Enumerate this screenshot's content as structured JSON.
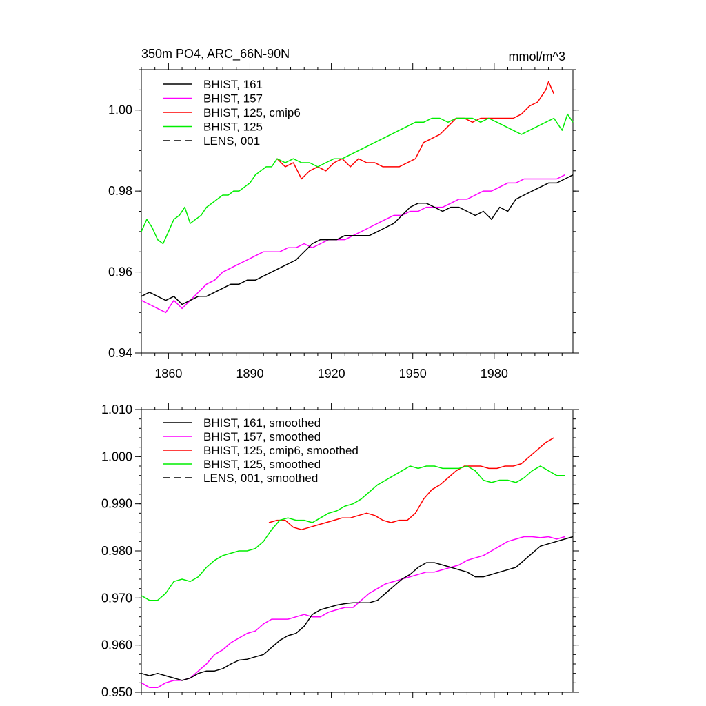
{
  "chart_data": [
    {
      "type": "line",
      "title_left": "350m PO4, ARC_66N-90N",
      "title_right": "mmol/m^3",
      "xlim": [
        1850,
        2009
      ],
      "ylim": [
        0.94,
        1.01
      ],
      "yticks": [
        "0.94",
        "0.96",
        "0.98",
        "1.00"
      ],
      "xticks": [
        "1860",
        "1890",
        "1920",
        "1950",
        "1980"
      ],
      "legend": [
        {
          "label": "BHIST, 161",
          "color": "#000000",
          "dash": false
        },
        {
          "label": "BHIST, 157",
          "color": "#ff00ff",
          "dash": false
        },
        {
          "label": "BHIST, 125, cmip6",
          "color": "#ff0000",
          "dash": false
        },
        {
          "label": "BHIST, 125",
          "color": "#00ee00",
          "dash": false
        },
        {
          "label": "LENS, 001",
          "color": "#000000",
          "dash": true
        }
      ],
      "series": [
        {
          "name": "BHIST, 125, cmip6",
          "color": "#ff0000",
          "x": [
            1900,
            1903,
            1906,
            1909,
            1912,
            1915,
            1918,
            1921,
            1924,
            1927,
            1930,
            1933,
            1936,
            1939,
            1942,
            1945,
            1948,
            1951,
            1954,
            1957,
            1960,
            1963,
            1966,
            1969,
            1972,
            1975,
            1978,
            1981,
            1984,
            1987,
            1990,
            1993,
            1996,
            1999,
            2000,
            2002
          ],
          "values": [
            0.988,
            0.986,
            0.987,
            0.983,
            0.985,
            0.986,
            0.985,
            0.987,
            0.988,
            0.986,
            0.988,
            0.987,
            0.987,
            0.986,
            0.986,
            0.986,
            0.987,
            0.988,
            0.992,
            0.993,
            0.994,
            0.996,
            0.998,
            0.998,
            0.997,
            0.998,
            0.998,
            0.998,
            0.998,
            0.998,
            0.999,
            1.001,
            1.002,
            1.005,
            1.007,
            1.004
          ]
        },
        {
          "name": "BHIST, 125",
          "color": "#00ee00",
          "x": [
            1850,
            1852,
            1854,
            1856,
            1858,
            1860,
            1862,
            1864,
            1866,
            1868,
            1870,
            1872,
            1874,
            1876,
            1878,
            1880,
            1882,
            1884,
            1886,
            1888,
            1890,
            1892,
            1894,
            1896,
            1898,
            1900,
            1903,
            1906,
            1909,
            1912,
            1915,
            1918,
            1921,
            1924,
            1927,
            1930,
            1933,
            1936,
            1939,
            1942,
            1945,
            1948,
            1951,
            1954,
            1957,
            1960,
            1963,
            1966,
            1969,
            1972,
            1975,
            1978,
            1981,
            1984,
            1987,
            1990,
            1993,
            1996,
            1999,
            2002,
            2005,
            2007,
            2009
          ],
          "values": [
            0.97,
            0.973,
            0.971,
            0.968,
            0.967,
            0.97,
            0.973,
            0.974,
            0.976,
            0.972,
            0.973,
            0.974,
            0.976,
            0.977,
            0.978,
            0.979,
            0.979,
            0.98,
            0.98,
            0.981,
            0.982,
            0.984,
            0.985,
            0.986,
            0.986,
            0.988,
            0.987,
            0.988,
            0.987,
            0.987,
            0.986,
            0.987,
            0.988,
            0.988,
            0.989,
            0.99,
            0.991,
            0.992,
            0.993,
            0.994,
            0.995,
            0.996,
            0.997,
            0.997,
            0.998,
            0.998,
            0.997,
            0.998,
            0.998,
            0.998,
            0.997,
            0.998,
            0.997,
            0.996,
            0.995,
            0.994,
            0.995,
            0.996,
            0.997,
            0.998,
            0.995,
            0.999,
            0.997
          ]
        },
        {
          "name": "BHIST, 157",
          "color": "#ff00ff",
          "x": [
            1850,
            1853,
            1856,
            1859,
            1862,
            1865,
            1868,
            1871,
            1874,
            1877,
            1880,
            1883,
            1886,
            1889,
            1892,
            1895,
            1898,
            1901,
            1904,
            1907,
            1910,
            1913,
            1916,
            1919,
            1922,
            1925,
            1928,
            1931,
            1934,
            1937,
            1940,
            1943,
            1946,
            1949,
            1952,
            1955,
            1958,
            1961,
            1964,
            1967,
            1970,
            1973,
            1976,
            1979,
            1982,
            1985,
            1988,
            1991,
            1994,
            1997,
            2000,
            2003,
            2006
          ],
          "values": [
            0.953,
            0.952,
            0.951,
            0.95,
            0.953,
            0.951,
            0.953,
            0.955,
            0.957,
            0.958,
            0.96,
            0.961,
            0.962,
            0.963,
            0.964,
            0.965,
            0.965,
            0.965,
            0.966,
            0.966,
            0.967,
            0.966,
            0.967,
            0.968,
            0.968,
            0.968,
            0.969,
            0.97,
            0.971,
            0.972,
            0.973,
            0.974,
            0.974,
            0.975,
            0.975,
            0.976,
            0.976,
            0.976,
            0.977,
            0.978,
            0.978,
            0.979,
            0.98,
            0.98,
            0.981,
            0.982,
            0.982,
            0.983,
            0.983,
            0.983,
            0.983,
            0.983,
            0.984
          ]
        },
        {
          "name": "BHIST, 161",
          "color": "#000000",
          "x": [
            1850,
            1853,
            1856,
            1859,
            1862,
            1865,
            1868,
            1871,
            1874,
            1877,
            1880,
            1883,
            1886,
            1889,
            1892,
            1895,
            1898,
            1901,
            1904,
            1907,
            1910,
            1913,
            1916,
            1919,
            1922,
            1925,
            1928,
            1931,
            1934,
            1937,
            1940,
            1943,
            1946,
            1949,
            1952,
            1955,
            1958,
            1961,
            1964,
            1967,
            1970,
            1973,
            1976,
            1979,
            1982,
            1985,
            1988,
            1991,
            1994,
            1997,
            2000,
            2003,
            2006,
            2009
          ],
          "values": [
            0.954,
            0.955,
            0.954,
            0.953,
            0.954,
            0.952,
            0.953,
            0.954,
            0.954,
            0.955,
            0.956,
            0.957,
            0.957,
            0.958,
            0.958,
            0.959,
            0.96,
            0.961,
            0.962,
            0.963,
            0.965,
            0.967,
            0.968,
            0.968,
            0.968,
            0.969,
            0.969,
            0.969,
            0.969,
            0.97,
            0.971,
            0.972,
            0.974,
            0.976,
            0.977,
            0.977,
            0.976,
            0.975,
            0.976,
            0.976,
            0.975,
            0.974,
            0.975,
            0.973,
            0.976,
            0.975,
            0.978,
            0.979,
            0.98,
            0.981,
            0.982,
            0.982,
            0.983,
            0.984
          ]
        }
      ]
    },
    {
      "type": "line",
      "xlim": [
        1850,
        2009
      ],
      "ylim": [
        0.95,
        1.01
      ],
      "yticks": [
        "0.950",
        "0.960",
        "0.970",
        "0.980",
        "0.990",
        "1.000",
        "1.010"
      ],
      "xticks": [],
      "legend": [
        {
          "label": "BHIST, 161, smoothed",
          "color": "#000000",
          "dash": false
        },
        {
          "label": "BHIST, 157, smoothed",
          "color": "#ff00ff",
          "dash": false
        },
        {
          "label": "BHIST, 125, cmip6, smoothed",
          "color": "#ff0000",
          "dash": false
        },
        {
          "label": "BHIST, 125, smoothed",
          "color": "#00ee00",
          "dash": false
        },
        {
          "label": "LENS, 001, smoothed",
          "color": "#000000",
          "dash": true
        }
      ],
      "series": [
        {
          "name": "BHIST, 125, cmip6, smoothed",
          "color": "#ff0000",
          "x": [
            1897,
            1900,
            1903,
            1906,
            1909,
            1912,
            1915,
            1918,
            1921,
            1924,
            1927,
            1930,
            1933,
            1936,
            1939,
            1942,
            1945,
            1948,
            1951,
            1954,
            1957,
            1960,
            1963,
            1966,
            1969,
            1972,
            1975,
            1978,
            1981,
            1984,
            1987,
            1990,
            1993,
            1996,
            1999,
            2002
          ],
          "values": [
            0.986,
            0.9865,
            0.9865,
            0.985,
            0.9845,
            0.985,
            0.9855,
            0.986,
            0.9865,
            0.987,
            0.987,
            0.9875,
            0.988,
            0.9875,
            0.9865,
            0.986,
            0.9865,
            0.9865,
            0.988,
            0.991,
            0.993,
            0.994,
            0.9955,
            0.997,
            0.998,
            0.998,
            0.998,
            0.9975,
            0.9975,
            0.998,
            0.998,
            0.9985,
            1.0,
            1.0015,
            1.003,
            1.004
          ]
        },
        {
          "name": "BHIST, 125, smoothed",
          "color": "#00ee00",
          "x": [
            1850,
            1853,
            1856,
            1859,
            1862,
            1865,
            1868,
            1871,
            1874,
            1877,
            1880,
            1883,
            1886,
            1889,
            1892,
            1895,
            1898,
            1901,
            1904,
            1907,
            1910,
            1913,
            1916,
            1919,
            1922,
            1925,
            1928,
            1931,
            1934,
            1937,
            1940,
            1943,
            1946,
            1949,
            1952,
            1955,
            1958,
            1961,
            1964,
            1967,
            1970,
            1973,
            1976,
            1979,
            1982,
            1985,
            1988,
            1991,
            1994,
            1997,
            2000,
            2003,
            2006
          ],
          "values": [
            0.9705,
            0.9695,
            0.9695,
            0.971,
            0.9735,
            0.974,
            0.9735,
            0.9745,
            0.9765,
            0.978,
            0.979,
            0.9795,
            0.98,
            0.98,
            0.9805,
            0.982,
            0.9845,
            0.9865,
            0.987,
            0.9865,
            0.9865,
            0.986,
            0.987,
            0.988,
            0.9885,
            0.9895,
            0.99,
            0.991,
            0.9925,
            0.994,
            0.995,
            0.996,
            0.997,
            0.998,
            0.9975,
            0.998,
            0.998,
            0.9975,
            0.9975,
            0.9975,
            0.998,
            0.997,
            0.995,
            0.9945,
            0.995,
            0.995,
            0.9945,
            0.9955,
            0.997,
            0.998,
            0.997,
            0.996,
            0.996
          ]
        },
        {
          "name": "BHIST, 157, smoothed",
          "color": "#ff00ff",
          "x": [
            1850,
            1853,
            1856,
            1859,
            1862,
            1865,
            1868,
            1871,
            1874,
            1877,
            1880,
            1883,
            1886,
            1889,
            1892,
            1895,
            1898,
            1901,
            1904,
            1907,
            1910,
            1913,
            1916,
            1919,
            1922,
            1925,
            1928,
            1931,
            1934,
            1937,
            1940,
            1943,
            1946,
            1949,
            1952,
            1955,
            1958,
            1961,
            1964,
            1967,
            1970,
            1973,
            1976,
            1979,
            1982,
            1985,
            1988,
            1991,
            1994,
            1997,
            2000,
            2003,
            2006
          ],
          "values": [
            0.952,
            0.951,
            0.951,
            0.952,
            0.9525,
            0.9525,
            0.953,
            0.9545,
            0.956,
            0.958,
            0.959,
            0.9605,
            0.9615,
            0.9625,
            0.963,
            0.9645,
            0.9655,
            0.9655,
            0.9655,
            0.966,
            0.9665,
            0.966,
            0.966,
            0.967,
            0.9675,
            0.968,
            0.968,
            0.9695,
            0.971,
            0.972,
            0.973,
            0.9735,
            0.974,
            0.9745,
            0.975,
            0.9755,
            0.9755,
            0.976,
            0.9765,
            0.977,
            0.978,
            0.9785,
            0.979,
            0.98,
            0.981,
            0.982,
            0.9825,
            0.983,
            0.983,
            0.9828,
            0.983,
            0.9825,
            0.983
          ]
        },
        {
          "name": "BHIST, 161, smoothed",
          "color": "#000000",
          "x": [
            1850,
            1853,
            1856,
            1859,
            1862,
            1865,
            1868,
            1871,
            1874,
            1877,
            1880,
            1883,
            1886,
            1889,
            1892,
            1895,
            1898,
            1901,
            1904,
            1907,
            1910,
            1913,
            1916,
            1919,
            1922,
            1925,
            1928,
            1931,
            1934,
            1937,
            1940,
            1943,
            1946,
            1949,
            1952,
            1955,
            1958,
            1961,
            1964,
            1967,
            1970,
            1973,
            1976,
            1979,
            1982,
            1985,
            1988,
            1991,
            1994,
            1997,
            2000,
            2003,
            2006,
            2009
          ],
          "values": [
            0.954,
            0.9535,
            0.954,
            0.9535,
            0.953,
            0.9525,
            0.953,
            0.954,
            0.9545,
            0.9545,
            0.955,
            0.956,
            0.9568,
            0.957,
            0.9575,
            0.958,
            0.9595,
            0.961,
            0.962,
            0.9625,
            0.964,
            0.9665,
            0.9675,
            0.968,
            0.9685,
            0.9688,
            0.969,
            0.969,
            0.969,
            0.9695,
            0.971,
            0.9725,
            0.974,
            0.975,
            0.9765,
            0.9775,
            0.9775,
            0.977,
            0.9765,
            0.976,
            0.9755,
            0.9745,
            0.9745,
            0.975,
            0.9755,
            0.976,
            0.9765,
            0.978,
            0.9795,
            0.981,
            0.9815,
            0.982,
            0.9825,
            0.983
          ]
        }
      ]
    }
  ]
}
